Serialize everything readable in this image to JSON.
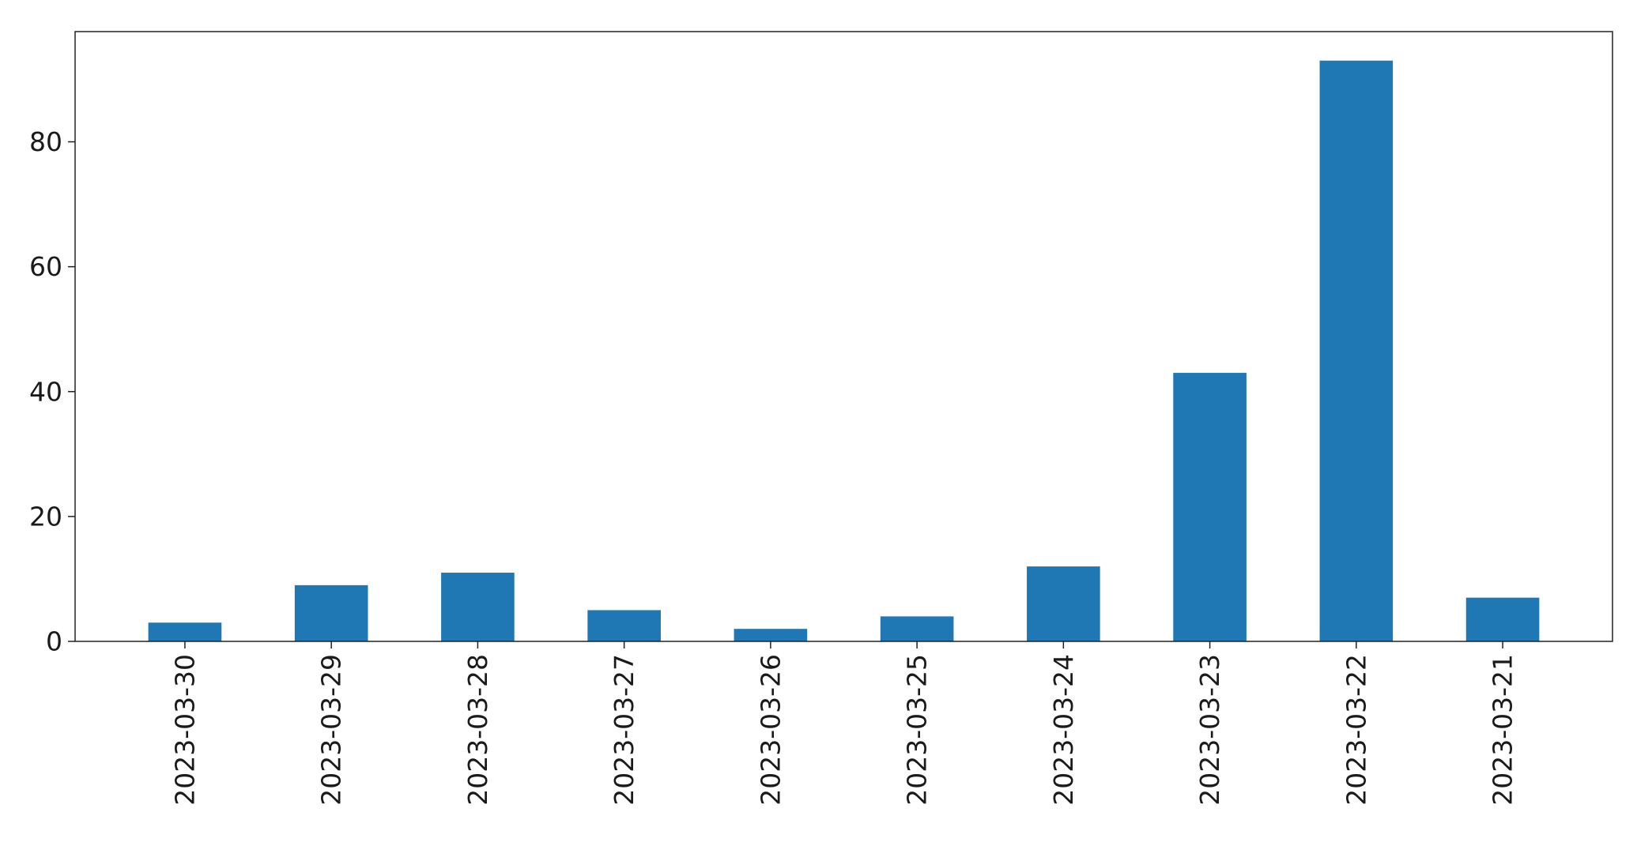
{
  "chart_data": {
    "type": "bar",
    "title": "",
    "xlabel": "",
    "ylabel": "",
    "categories": [
      "2023-03-30",
      "2023-03-29",
      "2023-03-28",
      "2023-03-27",
      "2023-03-26",
      "2023-03-25",
      "2023-03-24",
      "2023-03-23",
      "2023-03-22",
      "2023-03-21"
    ],
    "values": [
      3,
      9,
      11,
      5,
      2,
      4,
      12,
      43,
      93,
      7
    ],
    "ylim": [
      0,
      97.65
    ],
    "yticks": [
      0,
      20,
      40,
      60,
      80
    ],
    "ytick_labels": [
      "0",
      "20",
      "40",
      "60",
      "80"
    ],
    "grid": false,
    "legend": "none",
    "bar_color": "#1f77b4"
  }
}
